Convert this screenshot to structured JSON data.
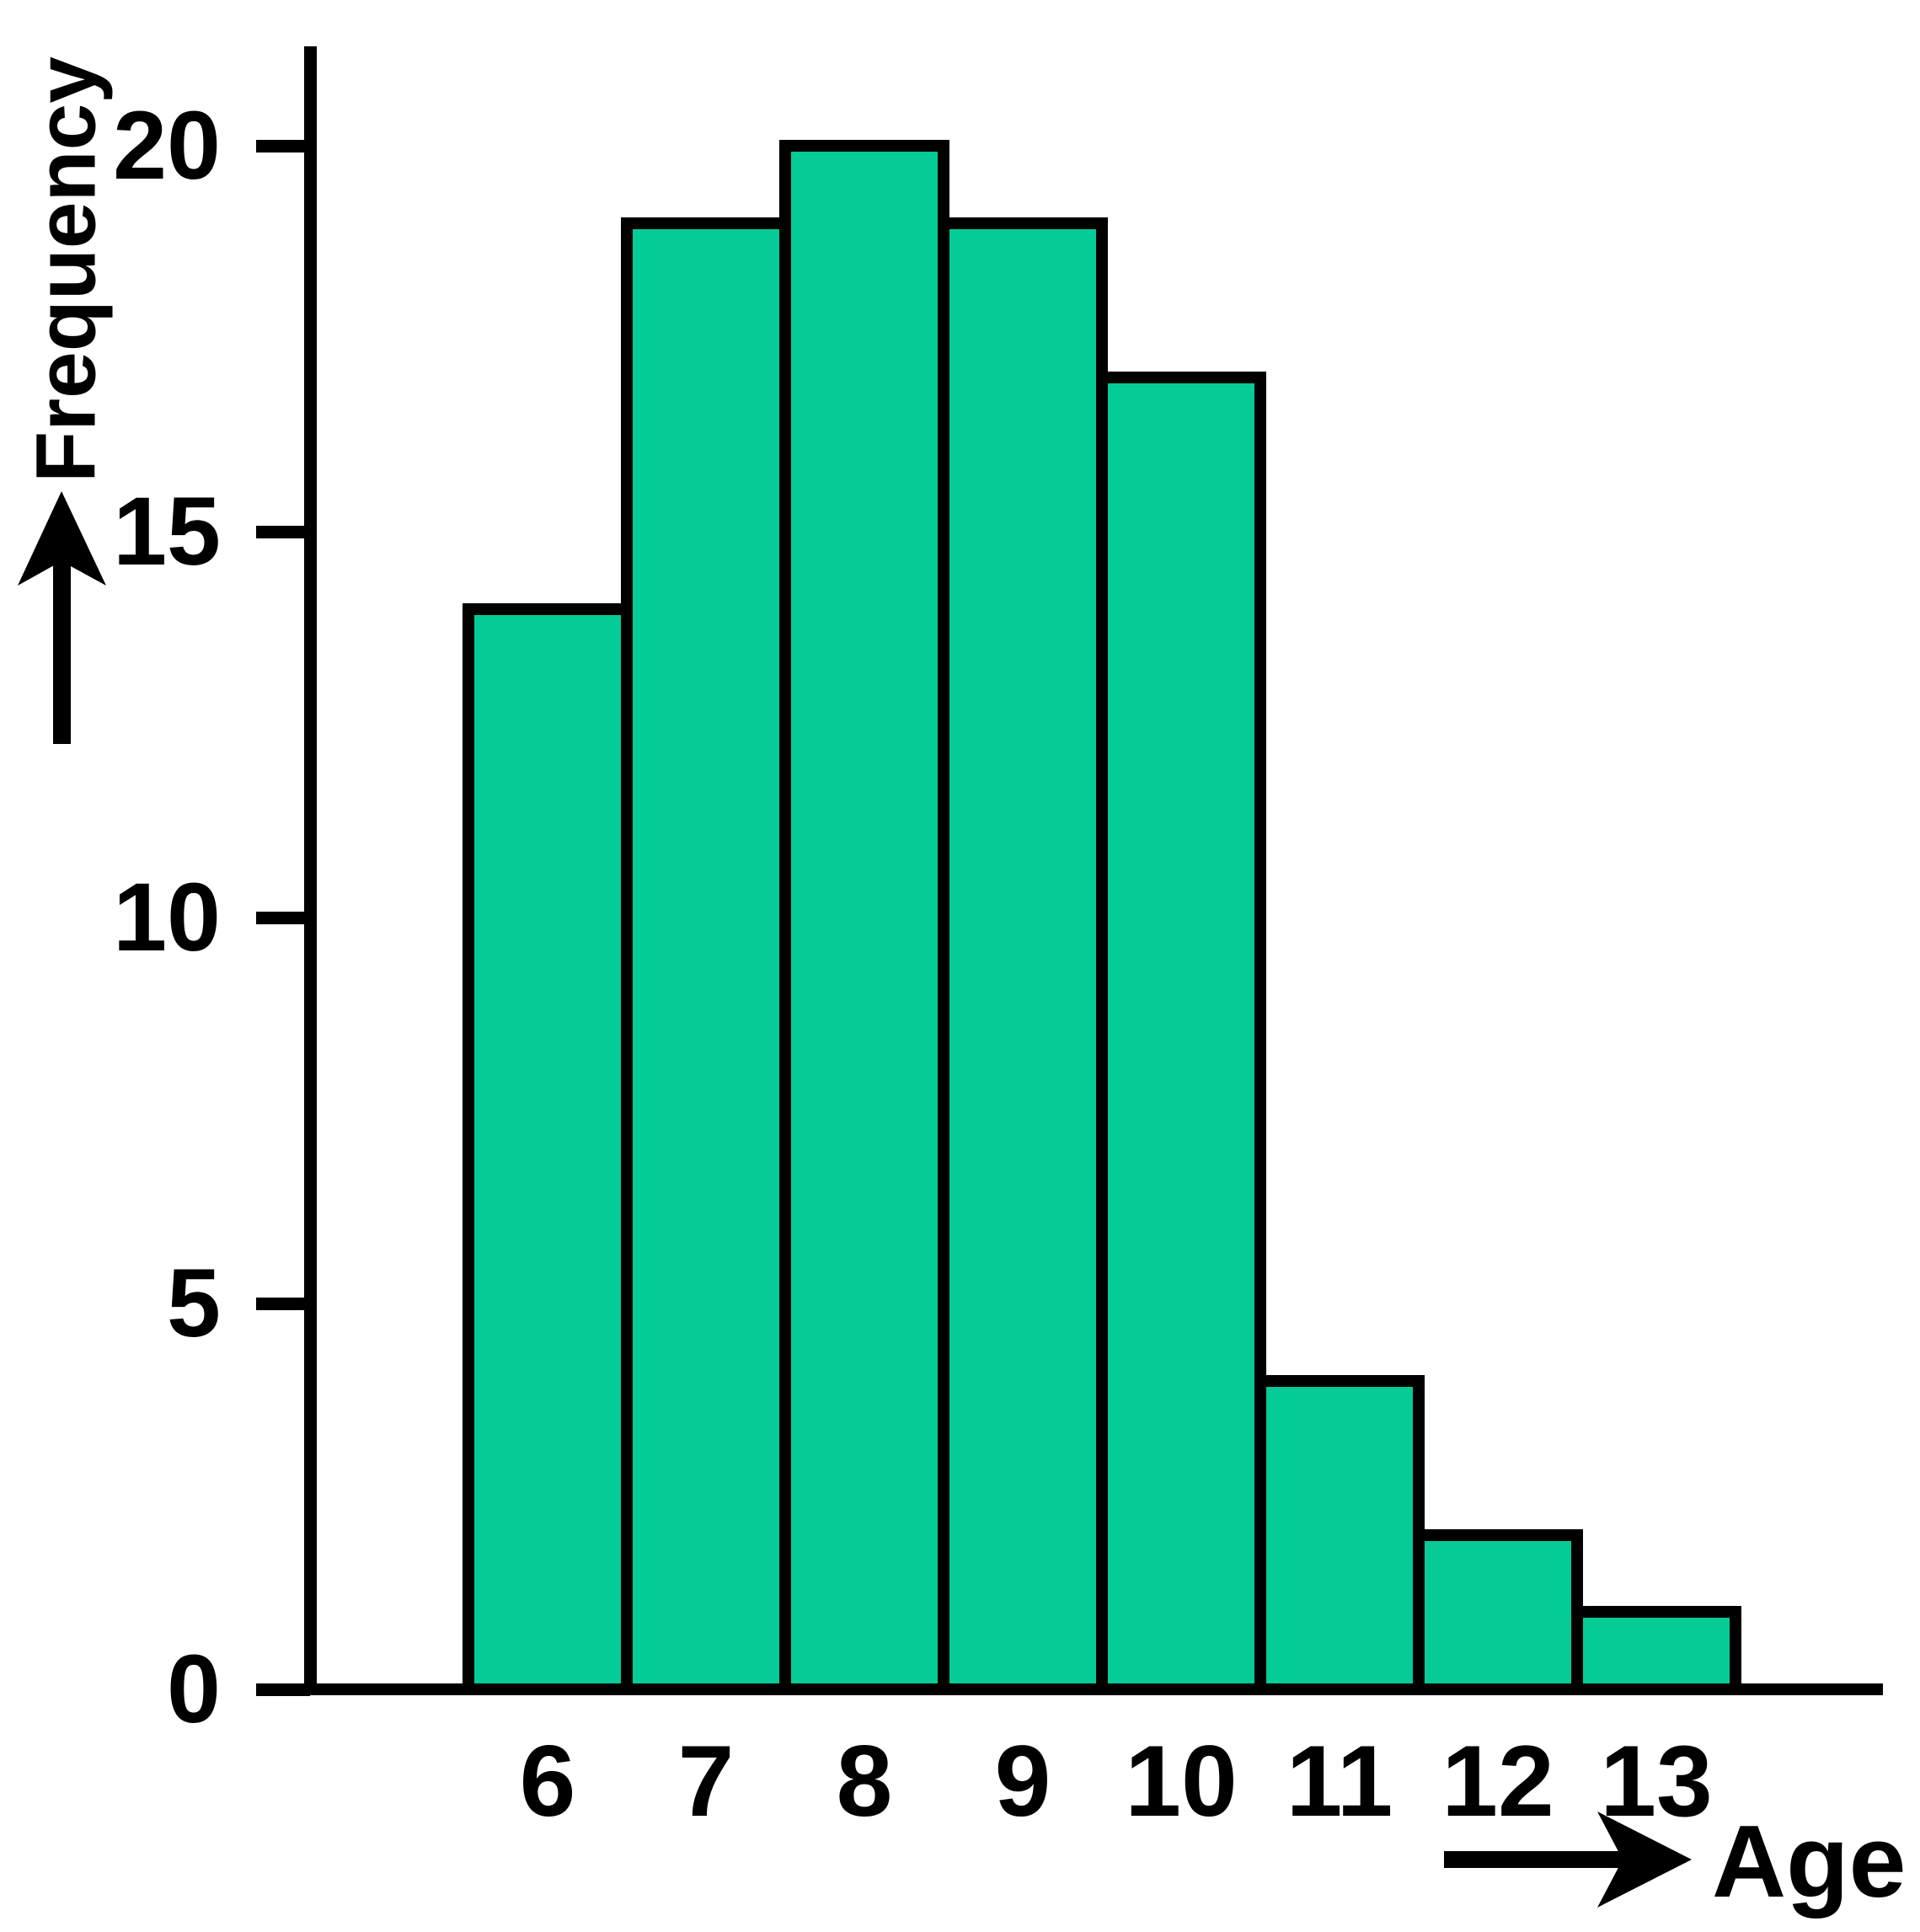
{
  "chart_data": {
    "type": "bar",
    "title": "",
    "categories": [
      "6",
      "7",
      "8",
      "9",
      "10",
      "11",
      "12",
      "13"
    ],
    "values": [
      14,
      19,
      20,
      19,
      17,
      4,
      2,
      1
    ],
    "xlabel": "Age",
    "ylabel": "Frequency",
    "y_ticks": [
      20,
      15,
      10,
      5,
      0
    ],
    "ylim": [
      0,
      21
    ],
    "grid": false,
    "legend": false,
    "bar_fill_color": "#05CB96",
    "bar_border_color": "#000000",
    "axis_color": "#000000",
    "background_color": "#FFFFFF"
  },
  "labels": {
    "ylabel": "Frequency",
    "xlabel": "Age"
  },
  "icons": {
    "y_axis_arrow": "up-arrow-icon",
    "x_axis_arrow": "right-arrow-icon"
  }
}
